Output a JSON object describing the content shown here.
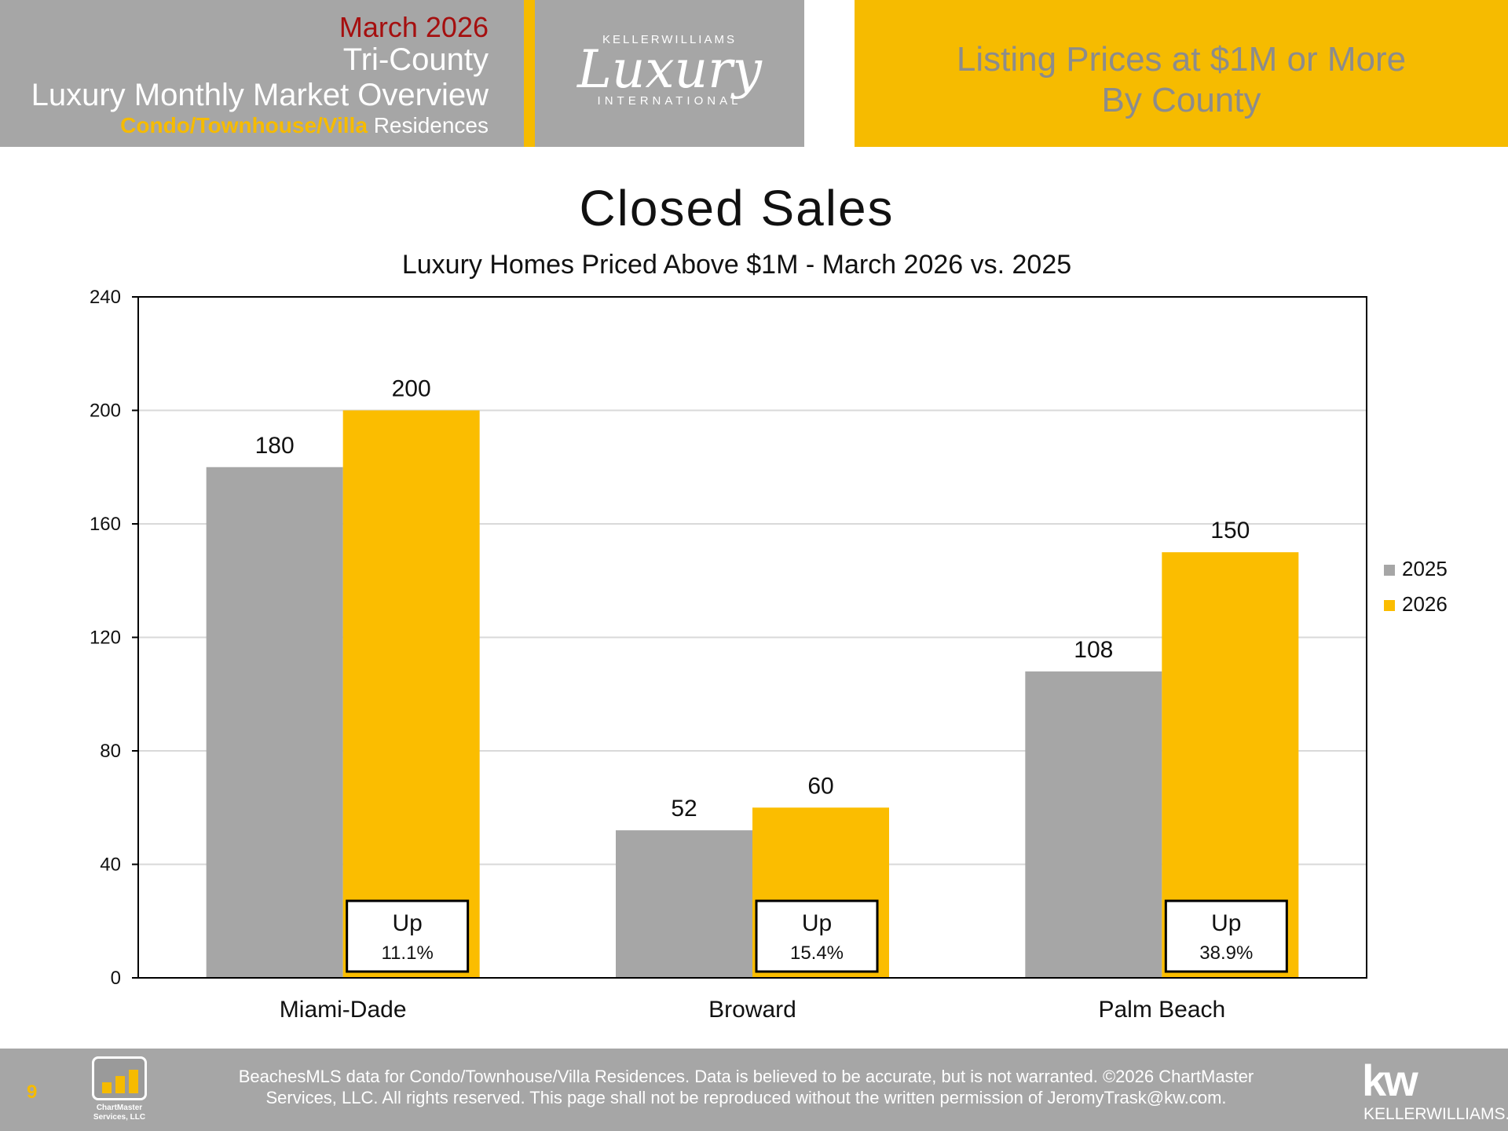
{
  "header": {
    "month": "March 2026",
    "region": "Tri-County",
    "overview": "Luxury Monthly Market Overview",
    "property_type_highlight": "Condo/Townhouse/Villa",
    "property_type_rest": "Residences",
    "logo": {
      "top": "KELLERWILLIAMS",
      "script": "Luxury",
      "bottom": "INTERNATIONAL"
    },
    "right_title_line1": "Listing Prices at $1M or More",
    "right_title_line2": "By County"
  },
  "chart_data": {
    "type": "bar",
    "title": "Closed Sales",
    "subtitle": "Luxury Homes Priced Above $1M - March 2026 vs. 2025",
    "categories": [
      "Miami-Dade",
      "Broward",
      "Palm Beach"
    ],
    "series": [
      {
        "name": "2025",
        "values": [
          180,
          52,
          108
        ],
        "color": "#a6a6a6"
      },
      {
        "name": "2026",
        "values": [
          200,
          60,
          150
        ],
        "color": "#fbbd00"
      }
    ],
    "ylim": [
      0,
      240
    ],
    "yticks": [
      0,
      40,
      80,
      120,
      160,
      200,
      240
    ],
    "grid": true,
    "legend_position": "right",
    "annotations": [
      {
        "category": "Miami-Dade",
        "direction": "Up",
        "change": "11.1%"
      },
      {
        "category": "Broward",
        "direction": "Up",
        "change": "15.4%"
      },
      {
        "category": "Palm Beach",
        "direction": "Up",
        "change": "38.9%"
      }
    ]
  },
  "footer": {
    "page_number": "9",
    "chartmaster_logo_line1": "ChartMaster",
    "chartmaster_logo_line2": "Services, LLC",
    "note_line1": "BeachesMLS data for Condo/Townhouse/Villa Residences.  Data is believed to be accurate, but is not warranted.   ©2026  ChartMaster",
    "note_line2": "Services, LLC.  All rights reserved. This page shall not be reproduced without the written permission of JeromyTrask@kw.com.",
    "kw_mark": "kw",
    "kw_name": "KELLERWILLIAMS."
  }
}
